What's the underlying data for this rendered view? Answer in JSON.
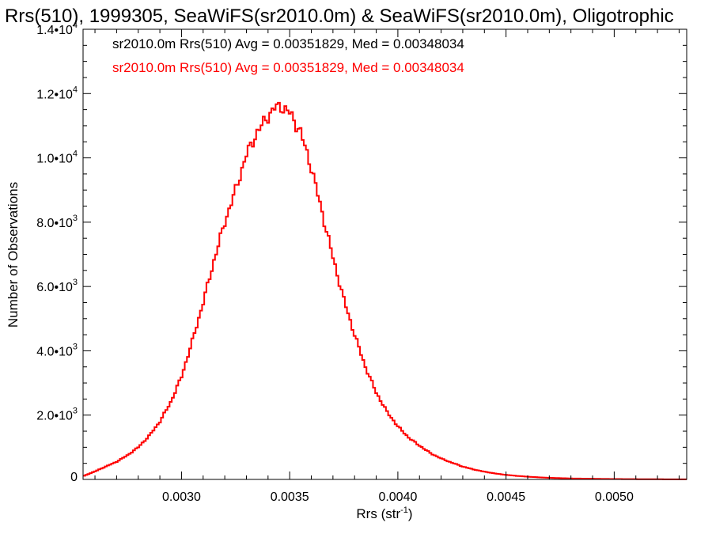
{
  "chart_data": {
    "type": "line",
    "title": "Rrs(510), 1999305, SeaWiFS(sr2010.0m) & SeaWiFS(sr2010.0m), Oligotrophic",
    "xlabel_main": "Rrs (str",
    "xlabel_sup": "-1",
    "xlabel_end": ")",
    "ylabel": "Number of Observations",
    "xlim": [
      0.002545,
      0.005335
    ],
    "ylim": [
      0,
      14000
    ],
    "xticks": [
      {
        "value": 0.003,
        "label": "0.0030"
      },
      {
        "value": 0.0035,
        "label": "0.0035"
      },
      {
        "value": 0.004,
        "label": "0.0040"
      },
      {
        "value": 0.0045,
        "label": "0.0045"
      },
      {
        "value": 0.005,
        "label": "0.0050"
      }
    ],
    "yticks": [
      {
        "value": 0,
        "mant": "0",
        "exp": ""
      },
      {
        "value": 2000,
        "mant": "2.0•10",
        "exp": "3"
      },
      {
        "value": 4000,
        "mant": "4.0•10",
        "exp": "3"
      },
      {
        "value": 6000,
        "mant": "6.0•10",
        "exp": "3"
      },
      {
        "value": 8000,
        "mant": "8.0•10",
        "exp": "3"
      },
      {
        "value": 10000,
        "mant": "1.0•10",
        "exp": "4"
      },
      {
        "value": 12000,
        "mant": "1.2•10",
        "exp": "4"
      },
      {
        "value": 14000,
        "mant": "1.4•10",
        "exp": "4"
      }
    ],
    "legend": [
      {
        "text": "sr2010.0m Rrs(510) Avg = 0.00351829, Med = 0.00348034",
        "color": "#000000"
      },
      {
        "text": "sr2010.0m Rrs(510) Avg = 0.00351829, Med = 0.00348034",
        "color": "#ff0000"
      }
    ],
    "legend_placement": "top-left",
    "series_color": "#ff0000",
    "series": [
      {
        "step": true,
        "x": [
          0.002545,
          0.0026,
          0.00265,
          0.0027,
          0.00275,
          0.0028,
          0.00285,
          0.0029,
          0.00295,
          0.003,
          0.00305,
          0.0031,
          0.00315,
          0.0032,
          0.00325,
          0.0033,
          0.00335,
          0.0034,
          0.00343,
          0.00346,
          0.0035,
          0.00355,
          0.0036,
          0.00365,
          0.0037,
          0.00375,
          0.0038,
          0.00385,
          0.0039,
          0.00395,
          0.004,
          0.00405,
          0.0041,
          0.00415,
          0.0042,
          0.00425,
          0.0043,
          0.00435,
          0.0044,
          0.00445,
          0.0045,
          0.00455,
          0.0046,
          0.00465,
          0.0047,
          0.00475,
          0.0048,
          0.00485,
          0.0049,
          0.00495,
          0.005,
          0.00505,
          0.0051,
          0.00515,
          0.0052,
          0.00525,
          0.0053,
          0.005335
        ],
        "y": [
          100,
          250,
          400,
          550,
          750,
          1000,
          1350,
          1800,
          2400,
          3200,
          4300,
          5500,
          6800,
          8000,
          9000,
          10100,
          10800,
          11300,
          11550,
          11600,
          11400,
          10800,
          9700,
          8300,
          6900,
          5600,
          4500,
          3500,
          2700,
          2100,
          1650,
          1300,
          1050,
          820,
          650,
          520,
          400,
          310,
          240,
          185,
          140,
          110,
          85,
          65,
          50,
          40,
          30,
          25,
          20,
          15,
          12,
          10,
          8,
          6,
          5,
          4,
          3,
          2
        ]
      }
    ]
  }
}
